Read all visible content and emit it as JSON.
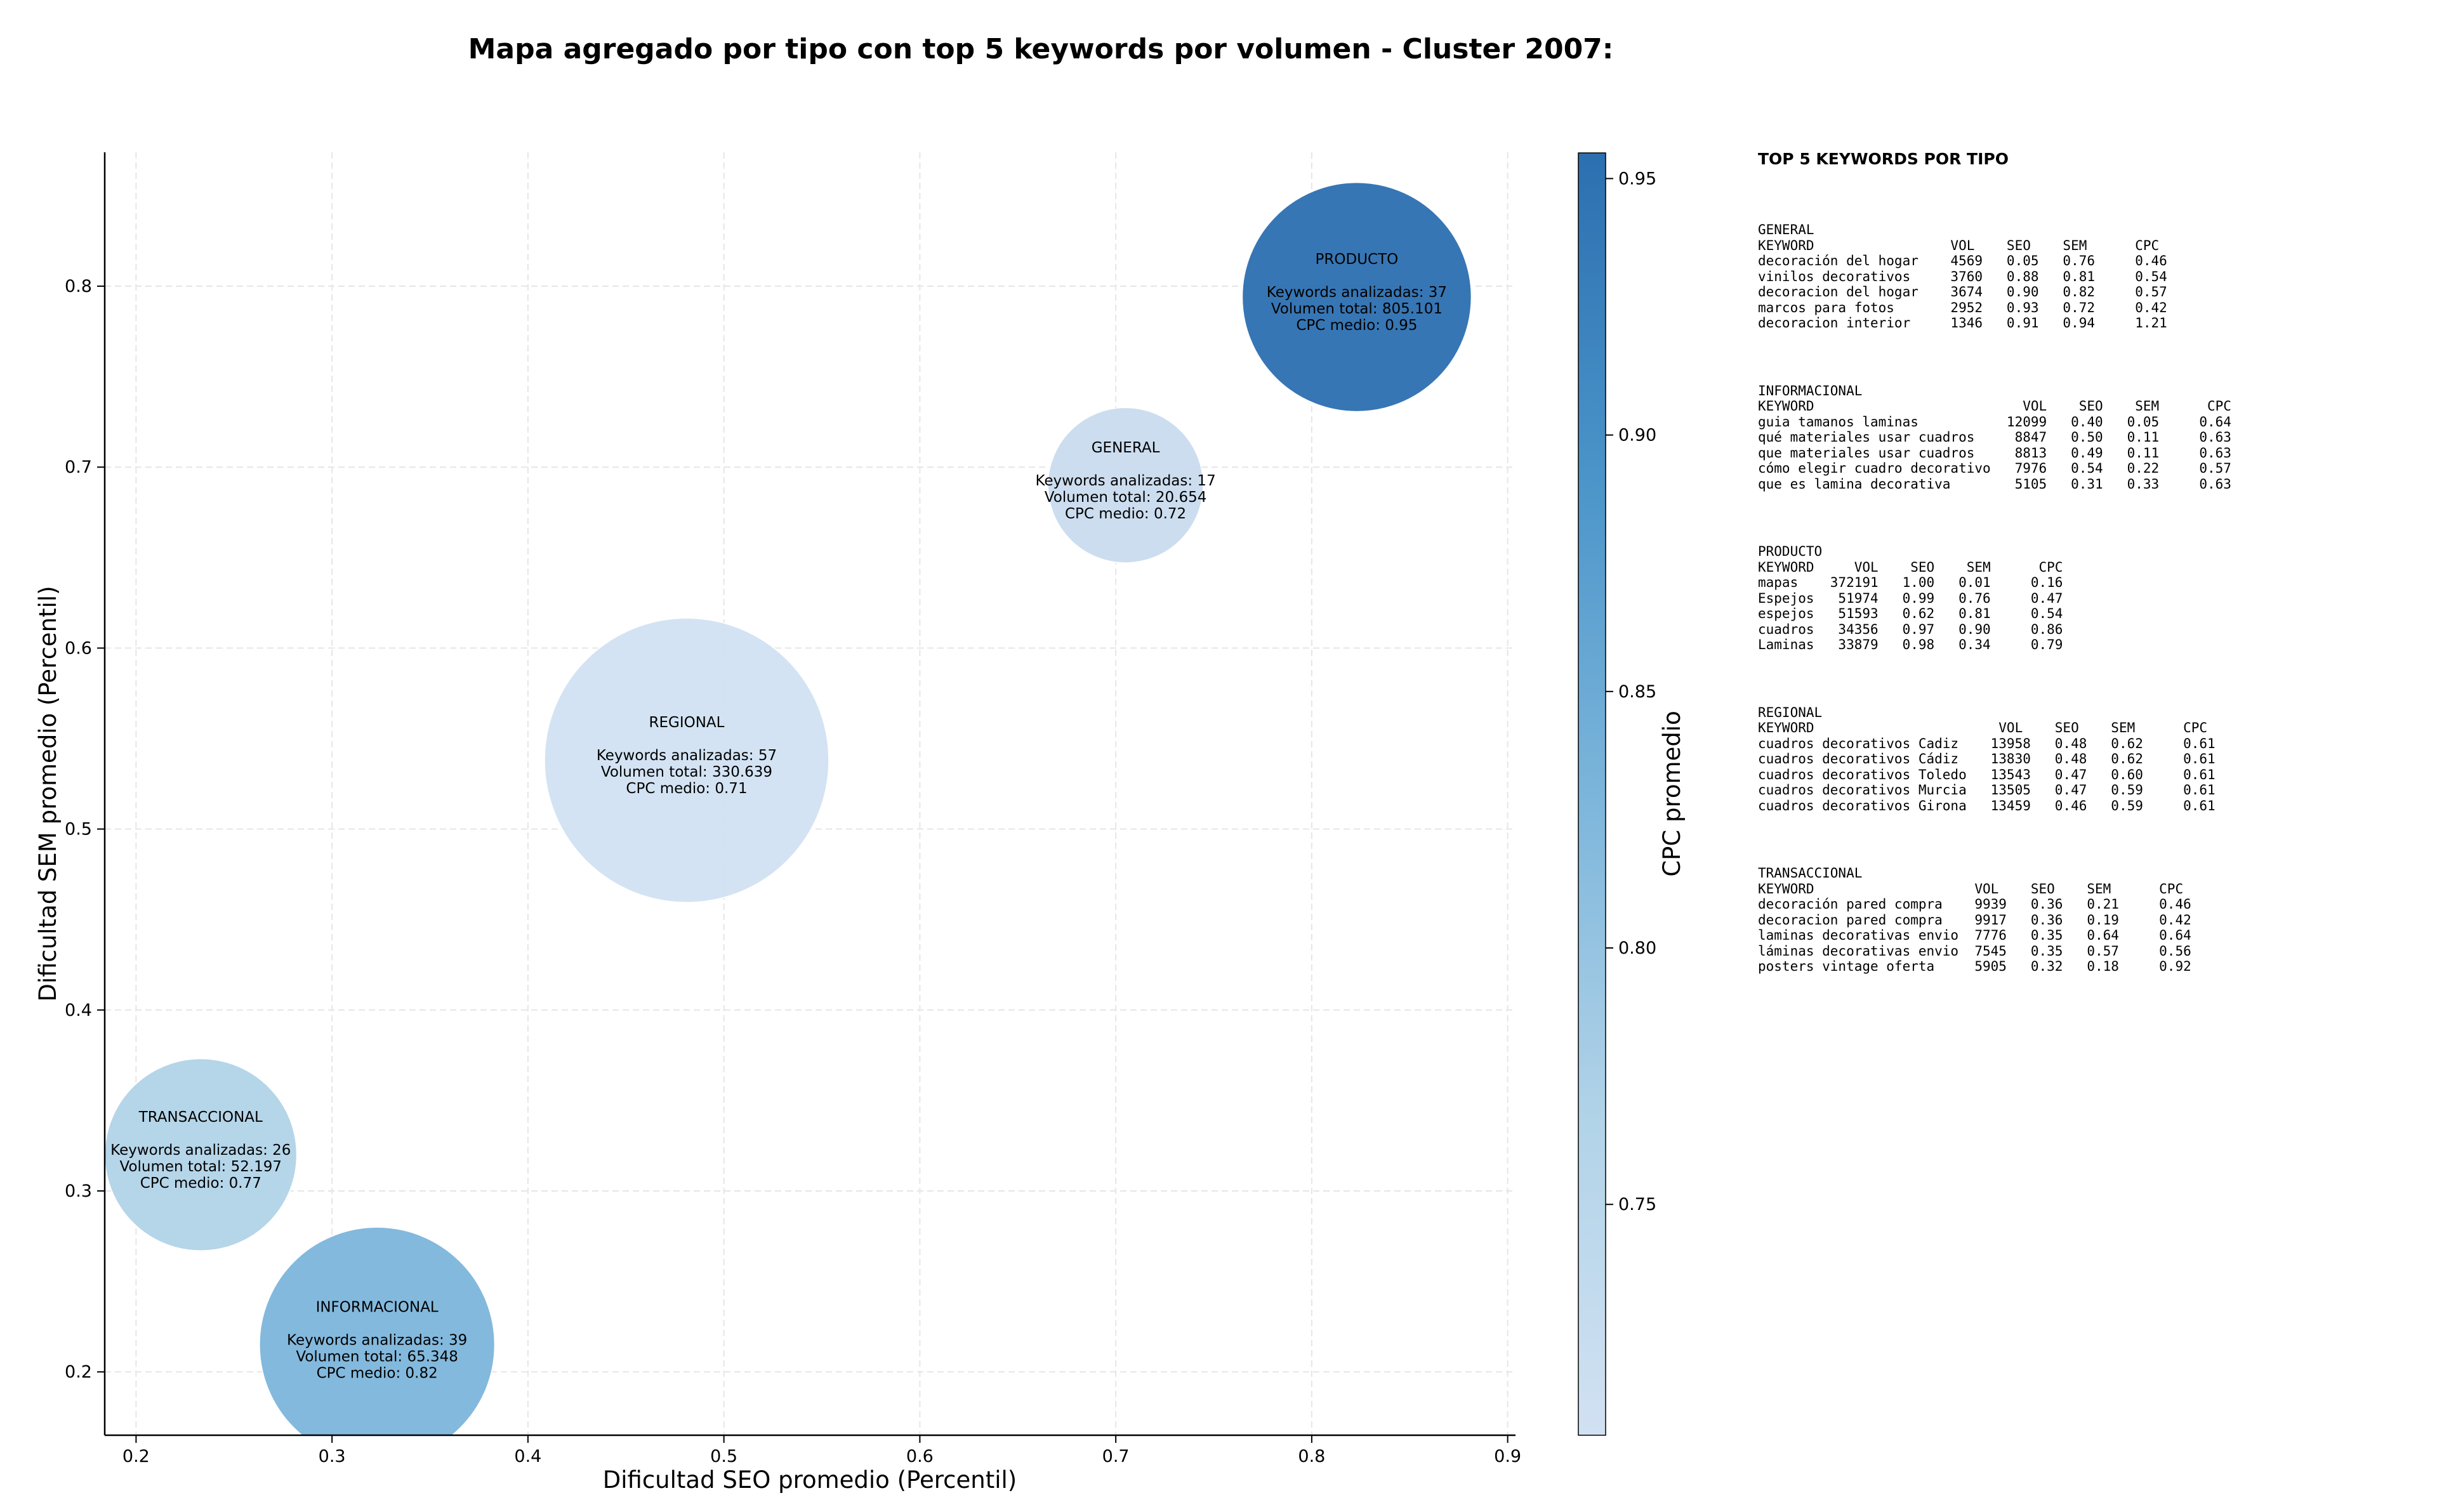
{
  "title": "Mapa agregado por tipo con top 5 keywords por volumen - Cluster 2007:",
  "chart_data": {
    "type": "scatter",
    "subtype": "bubble",
    "xlabel": "Dificultad SEO promedio (Percentil)",
    "ylabel": "Dificultad SEM promedio (Percentil)",
    "xlim": [
      0.184,
      0.904
    ],
    "ylim": [
      0.165,
      0.874
    ],
    "xticks": [
      "0.2",
      "0.3",
      "0.4",
      "0.5",
      "0.6",
      "0.7",
      "0.8",
      "0.9"
    ],
    "yticks": [
      "0.2",
      "0.3",
      "0.4",
      "0.5",
      "0.6",
      "0.7",
      "0.8"
    ],
    "grid": true,
    "colorbar": {
      "label": "CPC promedio",
      "range": [
        0.705,
        0.955
      ],
      "ticks": [
        "0.75",
        "0.80",
        "0.85",
        "0.90",
        "0.95"
      ],
      "colormap": [
        "#c6dbef",
        "#9ecae1",
        "#6baed6",
        "#4292c6",
        "#2c6fb0"
      ]
    },
    "points": [
      {
        "type": "PRODUCTO",
        "x": 0.823,
        "y": 0.794,
        "keywords": "Keywords analizadas: 37",
        "volume": "Volumen total: 805.101",
        "cpc_text": "CPC medio: 0.95",
        "cpc": 0.95,
        "count": 37,
        "color": "#2c6fb0"
      },
      {
        "type": "GENERAL",
        "x": 0.705,
        "y": 0.69,
        "keywords": "Keywords analizadas: 17",
        "volume": "Volumen total: 20.654",
        "cpc_text": "CPC medio: 0.72",
        "cpc": 0.72,
        "count": 17,
        "color": "#c9dbee"
      },
      {
        "type": "REGIONAL",
        "x": 0.481,
        "y": 0.538,
        "keywords": "Keywords analizadas: 57",
        "volume": "Volumen total: 330.639",
        "cpc_text": "CPC medio: 0.71",
        "cpc": 0.71,
        "count": 57,
        "color": "#d1e1f2"
      },
      {
        "type": "TRANSACCIONAL",
        "x": 0.233,
        "y": 0.32,
        "keywords": "Keywords analizadas: 26",
        "volume": "Volumen total: 52.197",
        "cpc_text": "CPC medio: 0.77",
        "cpc": 0.77,
        "count": 26,
        "color": "#b1d3e8"
      },
      {
        "type": "INFORMACIONAL",
        "x": 0.323,
        "y": 0.215,
        "keywords": "Keywords analizadas: 39",
        "volume": "Volumen total: 65.348",
        "cpc_text": "CPC medio: 0.82",
        "cpc": 0.82,
        "count": 39,
        "color": "#7cb5db"
      }
    ]
  },
  "panel": {
    "title": "TOP 5 KEYWORDS POR TIPO",
    "blocks": [
      {
        "text": "GENERAL\nKEYWORD                 VOL    SEO    SEM      CPC\ndecoración del hogar    4569   0.05   0.76     0.46\nvinilos decorativos     3760   0.88   0.81     0.54\ndecoracion del hogar    3674   0.90   0.82     0.57\nmarcos para fotos       2952   0.93   0.72     0.42\ndecoracion interior     1346   0.91   0.94     1.21"
      },
      {
        "text": "INFORMACIONAL\nKEYWORD                          VOL    SEO    SEM      CPC\nguia tamanos laminas           12099   0.40   0.05     0.64\nqué materiales usar cuadros     8847   0.50   0.11     0.63\nque materiales usar cuadros     8813   0.49   0.11     0.63\ncómo elegir cuadro decorativo   7976   0.54   0.22     0.57\nque es lamina decorativa        5105   0.31   0.33     0.63"
      },
      {
        "text": "PRODUCTO\nKEYWORD     VOL    SEO    SEM      CPC\nmapas    372191   1.00   0.01     0.16\nEspejos   51974   0.99   0.76     0.47\nespejos   51593   0.62   0.81     0.54\ncuadros   34356   0.97   0.90     0.86\nLaminas   33879   0.98   0.34     0.79"
      },
      {
        "text": "REGIONAL\nKEYWORD                       VOL    SEO    SEM      CPC\ncuadros decorativos Cadiz    13958   0.48   0.62     0.61\ncuadros decorativos Cádiz    13830   0.48   0.62     0.61\ncuadros decorativos Toledo   13543   0.47   0.60     0.61\ncuadros decorativos Murcia   13505   0.47   0.59     0.61\ncuadros decorativos Girona   13459   0.46   0.59     0.61"
      },
      {
        "text": "TRANSACCIONAL\nKEYWORD                    VOL    SEO    SEM      CPC\ndecoración pared compra    9939   0.36   0.21     0.46\ndecoracion pared compra    9917   0.36   0.19     0.42\nlaminas decorativas envio  7776   0.35   0.64     0.64\nláminas decorativas envio  7545   0.35   0.57     0.56\nposters vintage oferta     5905   0.32   0.18     0.92"
      }
    ]
  }
}
